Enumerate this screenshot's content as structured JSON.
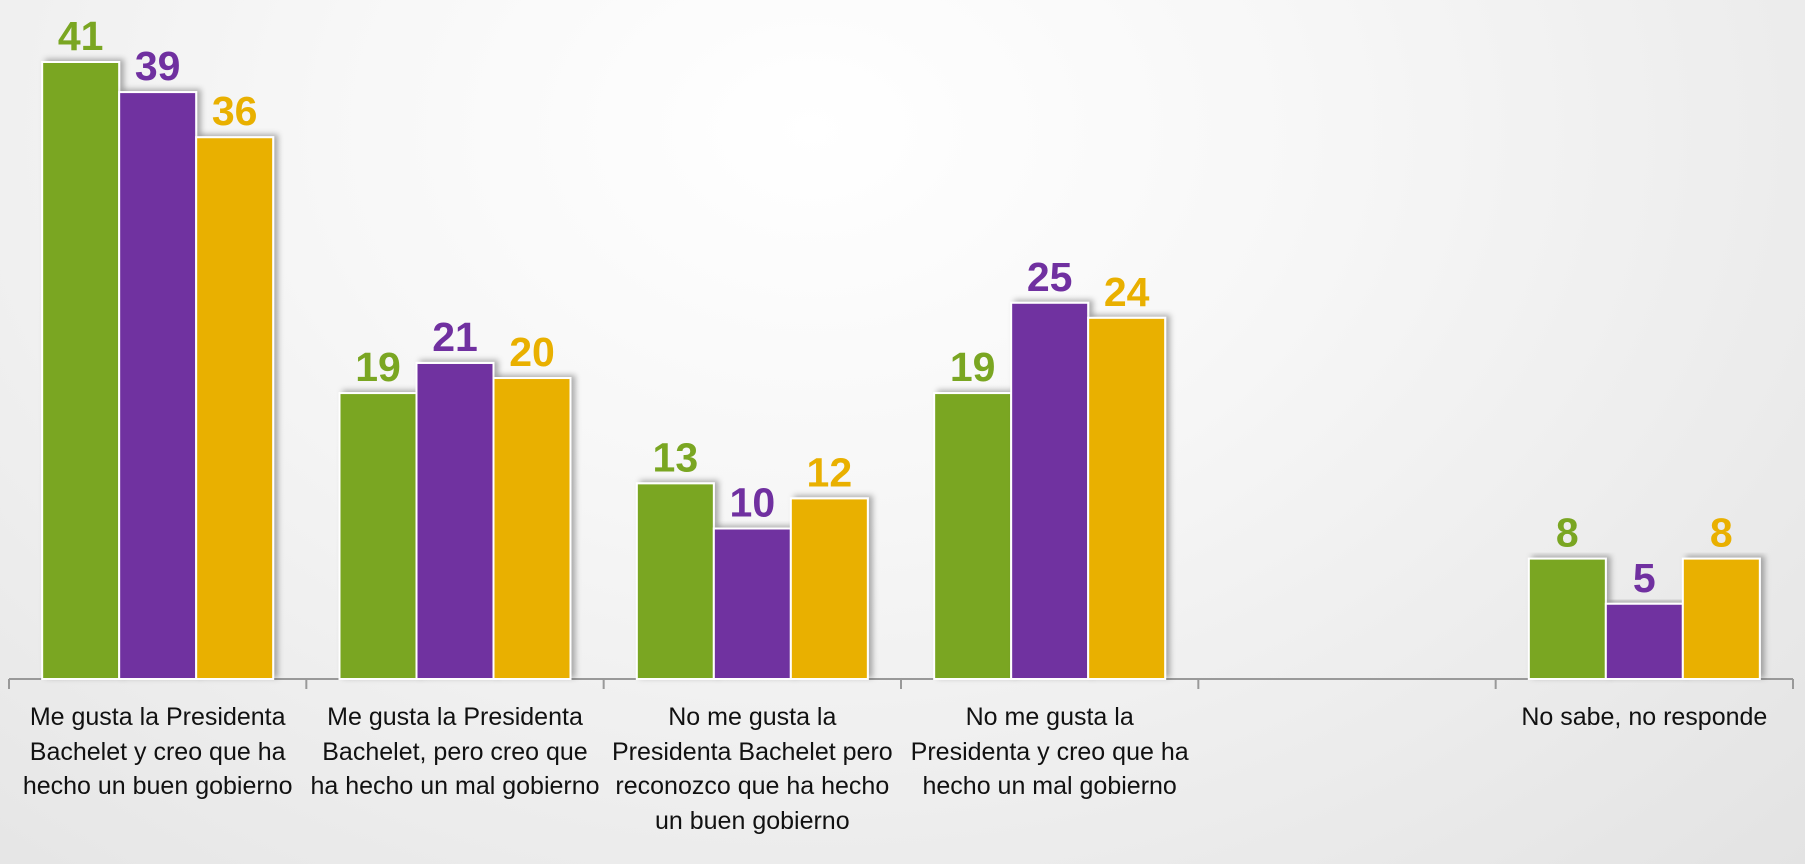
{
  "chart_data": {
    "type": "bar",
    "categories": [
      "Me gusta la Presidenta Bachelet y creo que ha hecho un buen gobierno",
      "Me gusta la Presidenta Bachelet, pero creo que ha hecho un mal gobierno",
      "No me gusta la Presidenta Bachelet pero reconozco que ha hecho un buen gobierno",
      "No me gusta la Presidenta y creo que ha hecho un mal gobierno",
      null,
      "No sabe, no responde"
    ],
    "series": [
      {
        "color": "#7aa622",
        "values": [
          41,
          19,
          13,
          19,
          null,
          8
        ]
      },
      {
        "color": "#7030a0",
        "values": [
          39,
          21,
          10,
          25,
          null,
          5
        ]
      },
      {
        "color": "#e9b000",
        "values": [
          36,
          20,
          12,
          24,
          null,
          8
        ]
      }
    ]
  }
}
